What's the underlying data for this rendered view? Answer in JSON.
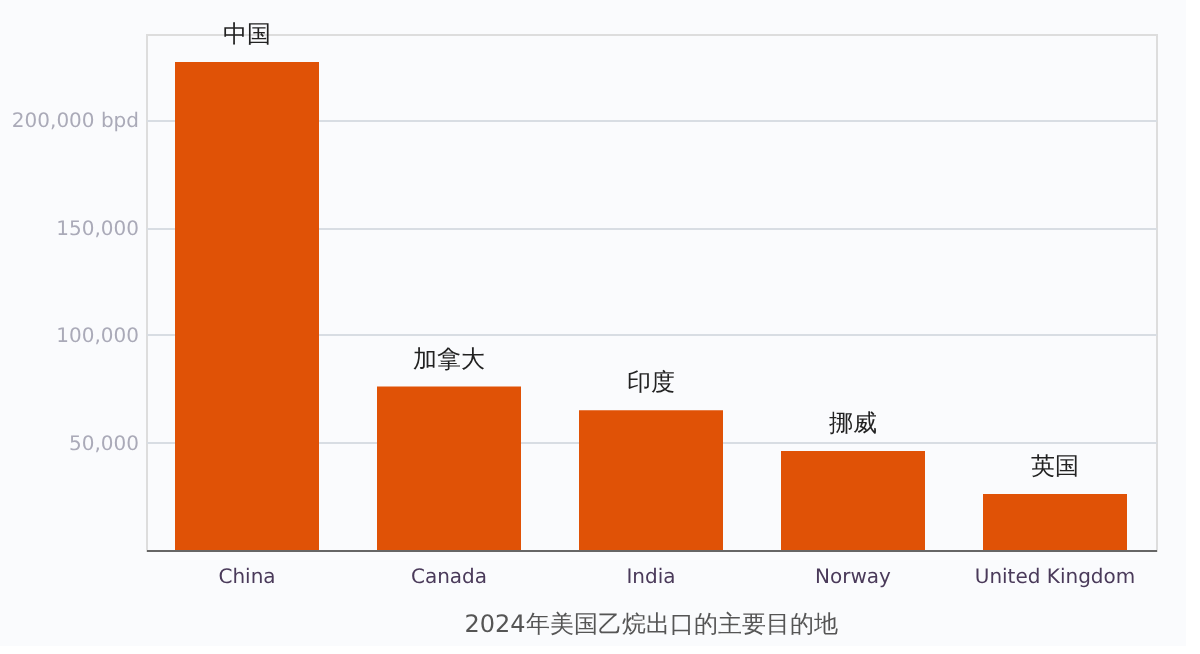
{
  "chart_data": {
    "type": "bar",
    "title": "2024年美国乙烷出口的主要目的地",
    "categories": [
      "China",
      "Canada",
      "India",
      "Norway",
      "United Kingdom"
    ],
    "values": [
      227000,
      76000,
      65000,
      46000,
      26000
    ],
    "color": "#e05206",
    "ylim": [
      0,
      240000
    ],
    "yticks": [
      {
        "value": 50000,
        "label": "50,000"
      },
      {
        "value": 100000,
        "label": "100,000"
      },
      {
        "value": 150000,
        "label": "150,000"
      },
      {
        "value": 200000,
        "label": "200,000 bpd"
      }
    ],
    "grid": "y",
    "annotations": [
      {
        "text": "中国",
        "x": "China",
        "y": 227000
      },
      {
        "text": "加拿大",
        "x": "Canada",
        "y": 76000
      },
      {
        "text": "印度",
        "x": "India",
        "y": 65000
      },
      {
        "text": "挪威",
        "x": "Norway",
        "y": 46000
      },
      {
        "text": "英国",
        "x": "United Kingdom",
        "y": 26000
      }
    ]
  }
}
